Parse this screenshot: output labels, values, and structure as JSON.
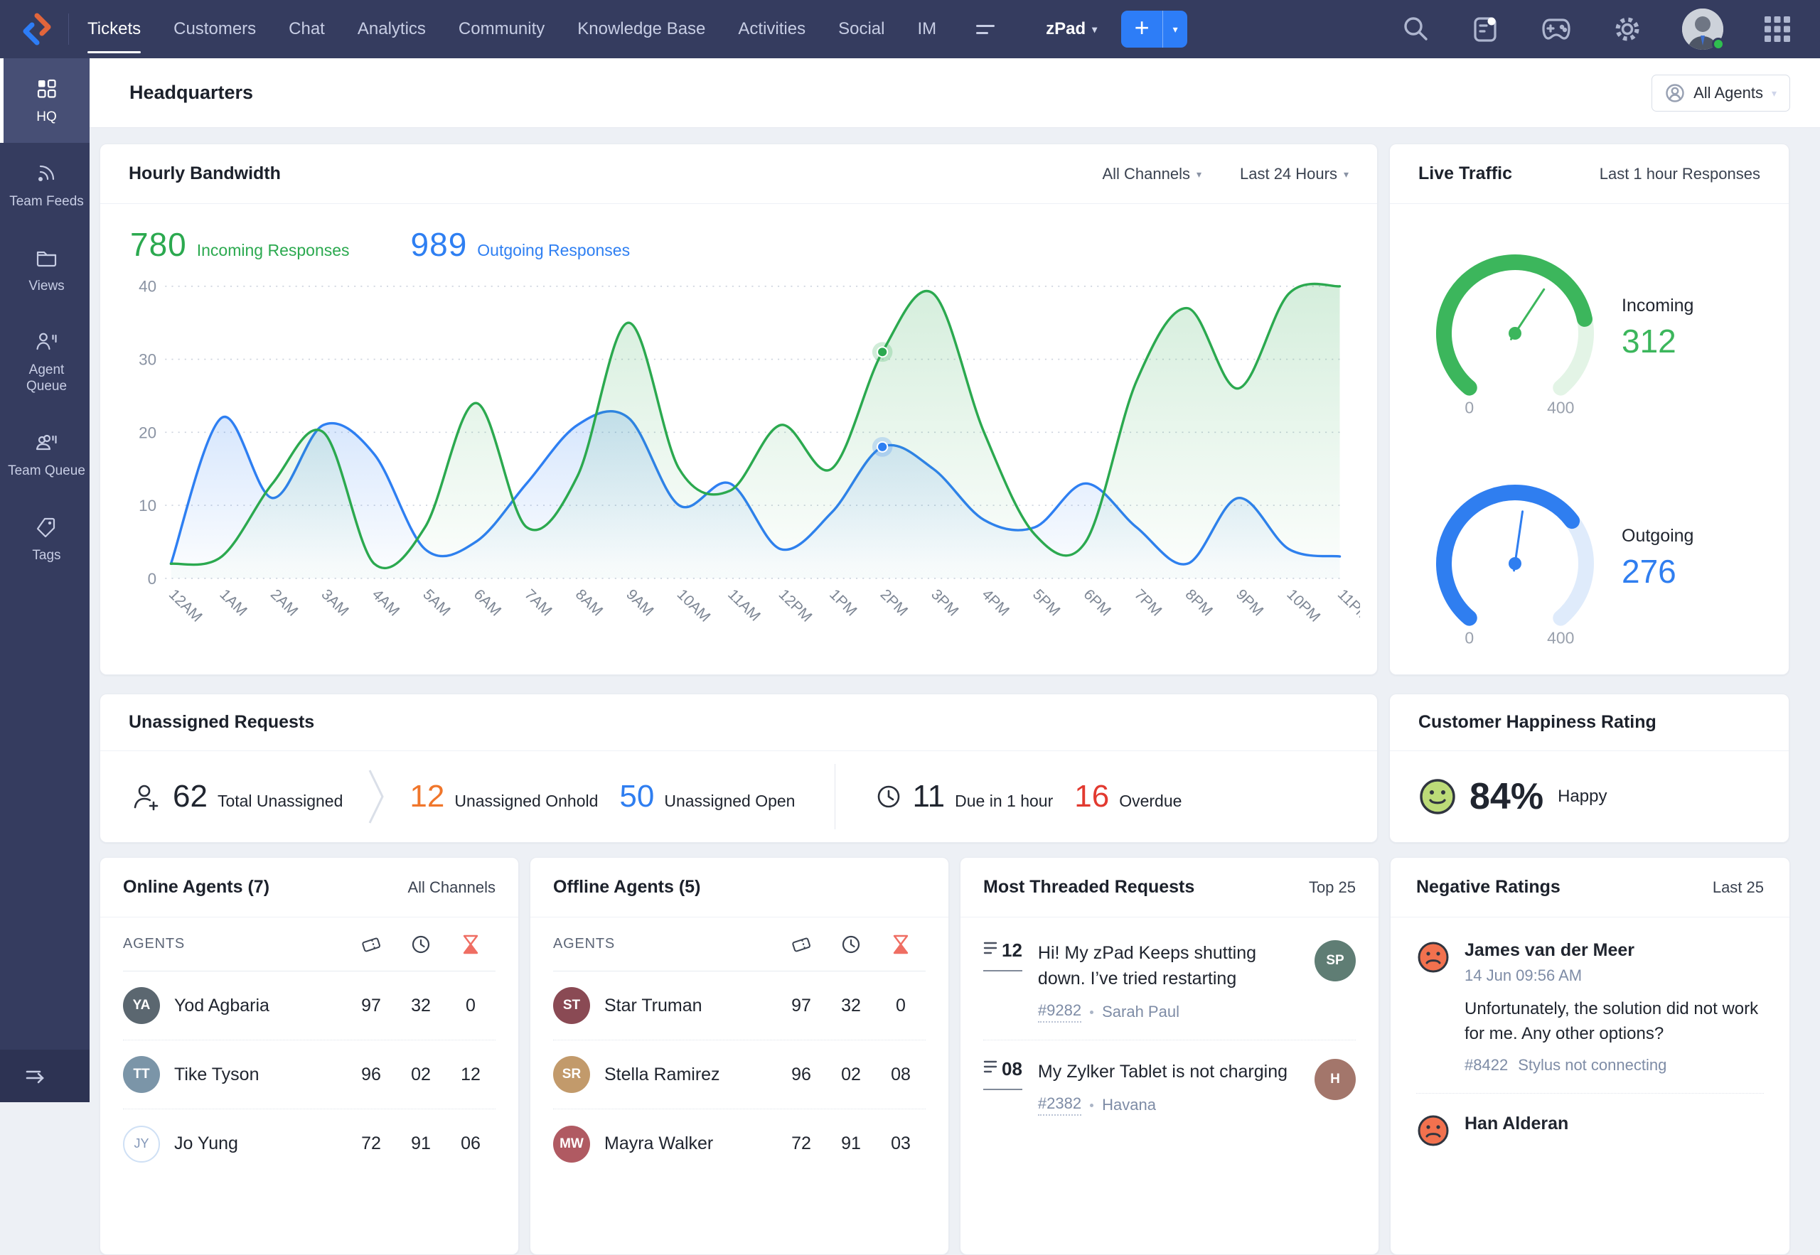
{
  "navbar": {
    "items": [
      "Tickets",
      "Customers",
      "Chat",
      "Analytics",
      "Community",
      "Knowledge Base",
      "Activities",
      "Social",
      "IM"
    ],
    "active_item": "Tickets",
    "department": "zPad",
    "icons": [
      "more-tabs-icon",
      "add-icon",
      "search-icon",
      "knowledge-feed-icon",
      "gamescope-icon",
      "settings-gear-icon",
      "user-avatar",
      "apps-grid-icon"
    ]
  },
  "sidebar": {
    "active_item": "HQ",
    "items": [
      {
        "label": "HQ",
        "icon": "hq-grid-icon"
      },
      {
        "label": "Team Feeds",
        "icon": "feeds-icon"
      },
      {
        "label": "Views",
        "icon": "views-folder-icon"
      },
      {
        "label": "Agent Queue",
        "icon": "agent-queue-icon"
      },
      {
        "label": "Team Queue",
        "icon": "team-queue-icon"
      },
      {
        "label": "Tags",
        "icon": "tag-icon"
      }
    ]
  },
  "page": {
    "title": "Headquarters",
    "agents_button": "All Agents"
  },
  "bandwidth": {
    "title": "Hourly Bandwidth",
    "filters": {
      "channel": "All Channels",
      "range": "Last 24 Hours"
    },
    "incoming": {
      "value": "780",
      "label": "Incoming Responses",
      "color": "#2BA94F"
    },
    "outgoing": {
      "value": "989",
      "label": "Outgoing Responses",
      "color": "#2E7FF2"
    }
  },
  "live_traffic": {
    "title": "Live Traffic",
    "subtitle": "Last 1 hour Responses"
  },
  "chart_data": [
    {
      "id": "hourly-bandwidth",
      "type": "area",
      "title": "Hourly Bandwidth",
      "x": [
        "12AM",
        "1AM",
        "2AM",
        "3AM",
        "4AM",
        "5AM",
        "6AM",
        "7AM",
        "8AM",
        "9AM",
        "10AM",
        "11AM",
        "12PM",
        "1PM",
        "2PM",
        "3PM",
        "4PM",
        "5PM",
        "6PM",
        "7PM",
        "8PM",
        "9PM",
        "10PM",
        "11PM"
      ],
      "series": [
        {
          "name": "Outgoing Responses",
          "total": 989,
          "color": "#2E7FF2",
          "values": [
            2,
            22,
            11,
            21,
            17,
            4,
            5,
            13,
            21,
            22,
            10,
            13,
            4,
            9,
            18,
            15,
            8,
            7,
            13,
            7,
            2,
            11,
            4,
            3
          ]
        },
        {
          "name": "Incoming Responses",
          "total": 780,
          "color": "#2BA94F",
          "values": [
            2,
            3,
            13,
            20,
            2,
            7,
            24,
            7,
            14,
            35,
            15,
            12,
            21,
            15,
            31,
            39,
            20,
            6,
            5,
            27,
            37,
            26,
            39,
            40
          ]
        }
      ],
      "markers": [
        {
          "series": "Incoming Responses",
          "x": "2PM"
        },
        {
          "series": "Outgoing Responses",
          "x": "2PM"
        }
      ],
      "ylim": [
        0,
        40
      ],
      "yticks": [
        0,
        10,
        20,
        30,
        40
      ],
      "grid": "horizontal-dotted",
      "legend_position": "none"
    },
    {
      "id": "live-traffic",
      "type": "gauge",
      "title": "Live Traffic",
      "subtitle": "Last 1 hour Responses",
      "gauges": [
        {
          "label": "Incoming",
          "value": 312,
          "min": 0,
          "max": 400,
          "color": "#3CB65C",
          "track": "#E3F4E6"
        },
        {
          "label": "Outgoing",
          "value": 276,
          "min": 0,
          "max": 400,
          "color": "#2F7EF0",
          "track": "#DFEBFB"
        }
      ]
    }
  ],
  "unassigned": {
    "title": "Unassigned Requests",
    "stats": [
      {
        "value": "62",
        "label": "Total Unassigned",
        "color": "#20252f",
        "icon": "user-plus-icon"
      },
      {
        "value": "12",
        "label": "Unassigned Onhold",
        "color": "#F0762B"
      },
      {
        "value": "50",
        "label": "Unassigned Open",
        "color": "#2F7EF0"
      },
      {
        "value": "11",
        "label": "Due in 1 hour",
        "color": "#20252f",
        "icon": "clock-icon"
      },
      {
        "value": "16",
        "label": "Overdue",
        "color": "#E23A30"
      }
    ]
  },
  "happiness": {
    "title": "Customer Happiness Rating",
    "value": "84%",
    "label": "Happy"
  },
  "online_agents": {
    "title": "Online Agents (7)",
    "subtitle": "All Channels",
    "col_header": "AGENTS",
    "col_icons": [
      "ticket-icon",
      "clock-icon",
      "hourglass-icon"
    ],
    "rows": [
      {
        "name": "Yod Agbaria",
        "c1": "97",
        "c2": "32",
        "c3": "0",
        "avatar": "photo"
      },
      {
        "name": "Tike Tyson",
        "c1": "96",
        "c2": "02",
        "c3": "12",
        "avatar": "photo"
      },
      {
        "name": "Jo Yung",
        "c1": "72",
        "c2": "91",
        "c3": "06",
        "avatar": "initials"
      }
    ]
  },
  "offline_agents": {
    "title": "Offline Agents (5)",
    "subtitle": "",
    "col_header": "AGENTS",
    "col_icons": [
      "ticket-icon",
      "clock-icon",
      "hourglass-icon"
    ],
    "rows": [
      {
        "name": "Star Truman",
        "c1": "97",
        "c2": "32",
        "c3": "0",
        "avatar": "photo"
      },
      {
        "name": "Stella Ramirez",
        "c1": "96",
        "c2": "02",
        "c3": "08",
        "avatar": "photo"
      },
      {
        "name": "Mayra Walker",
        "c1": "72",
        "c2": "91",
        "c3": "03",
        "avatar": "photo"
      }
    ]
  },
  "threaded": {
    "title": "Most Threaded Requests",
    "subtitle": "Top 25",
    "items": [
      {
        "count": "12",
        "text": "Hi! My zPad Keeps shutting down. I’ve tried restarting",
        "ticket": "#9282",
        "agent": "Sarah Paul"
      },
      {
        "count": "08",
        "text": "My Zylker Tablet is not charging",
        "ticket": "#2382",
        "agent": "Havana"
      }
    ]
  },
  "negative": {
    "title": "Negative Ratings",
    "subtitle": "Last 25",
    "items": [
      {
        "name": "James van der Meer",
        "time": "14 Jun 09:56 AM",
        "text": "Unfortunately, the solution did not work for me. Any other options?",
        "ticket": "#8422",
        "subject": "Stylus not connecting"
      },
      {
        "name": "Han Alderan",
        "time": "",
        "text": "",
        "ticket": "",
        "subject": ""
      }
    ]
  },
  "colors": {
    "navbar_bg": "#353C5F",
    "accent_blue": "#2D7DF7",
    "green": "#2BA94F",
    "blue": "#2E7FF2",
    "orange": "#F0762B",
    "red": "#E23A30",
    "hourglass_red": "#EF6E63",
    "sad_face": "#F2714E",
    "happy_face": "#BCDB78"
  }
}
